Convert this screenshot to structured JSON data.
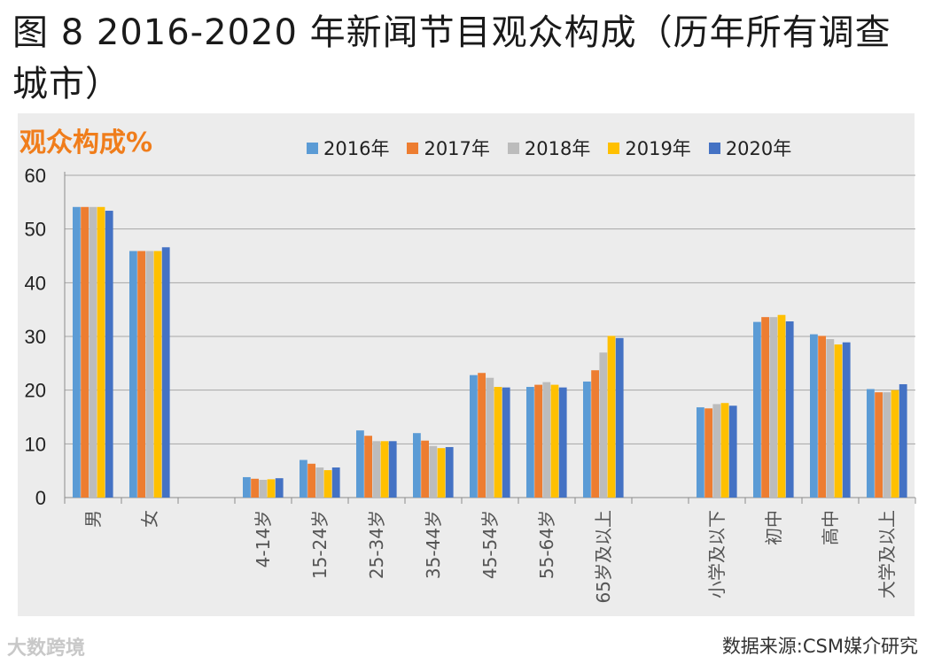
{
  "title": "图 8 2016-2020 年新闻节目观众构成（历年所有调查城市）",
  "ylabel": "观众构成%",
  "source": "数据来源:CSM媒介研究",
  "watermark": "大数跨境",
  "colors": {
    "2016年": "#5b9bd5",
    "2017年": "#ed7d31",
    "2018年": "#bcbcbc",
    "2019年": "#ffc000",
    "2020年": "#4472c4"
  },
  "chart_data": {
    "type": "bar",
    "ylim": [
      0,
      60
    ],
    "yticks": [
      0,
      10,
      20,
      30,
      40,
      50,
      60
    ],
    "grid": true,
    "legend_position": "top",
    "categories": [
      "男",
      "女",
      "",
      "4-14岁",
      "15-24岁",
      "25-34岁",
      "35-44岁",
      "45-54岁",
      "55-64岁",
      "65岁及以上",
      "",
      "小学及以下",
      "初中",
      "高中",
      "大学及以上"
    ],
    "series": [
      {
        "name": "2016年",
        "values": [
          54.1,
          45.9,
          null,
          3.8,
          7.0,
          12.5,
          12.0,
          22.8,
          20.6,
          21.6,
          null,
          16.8,
          32.7,
          30.4,
          20.2
        ]
      },
      {
        "name": "2017年",
        "values": [
          54.1,
          45.9,
          null,
          3.5,
          6.3,
          11.5,
          10.6,
          23.2,
          21.0,
          23.7,
          null,
          16.6,
          33.6,
          30.1,
          19.6
        ]
      },
      {
        "name": "2018年",
        "values": [
          54.1,
          45.9,
          null,
          3.3,
          5.6,
          10.5,
          9.6,
          22.3,
          21.5,
          27.0,
          null,
          17.4,
          33.6,
          29.5,
          19.6
        ]
      },
      {
        "name": "2019年",
        "values": [
          54.1,
          45.9,
          null,
          3.4,
          5.1,
          10.5,
          9.2,
          20.6,
          21.0,
          30.1,
          null,
          17.6,
          34.0,
          28.5,
          20.0
        ]
      },
      {
        "name": "2020年",
        "values": [
          53.4,
          46.6,
          null,
          3.6,
          5.6,
          10.5,
          9.4,
          20.5,
          20.5,
          29.7,
          null,
          17.1,
          32.8,
          28.9,
          21.1
        ]
      }
    ]
  }
}
